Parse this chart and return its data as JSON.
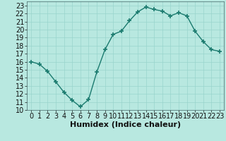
{
  "x": [
    0,
    1,
    2,
    3,
    4,
    5,
    6,
    7,
    8,
    9,
    10,
    11,
    12,
    13,
    14,
    15,
    16,
    17,
    18,
    19,
    20,
    21,
    22,
    23
  ],
  "y": [
    16.0,
    15.7,
    14.8,
    13.5,
    12.2,
    11.2,
    10.4,
    11.3,
    14.7,
    17.5,
    19.4,
    19.8,
    21.1,
    22.2,
    22.8,
    22.5,
    22.3,
    21.7,
    22.1,
    21.7,
    19.8,
    18.5,
    17.5,
    17.3
  ],
  "line_color": "#1a7a6e",
  "bg_color": "#b8e8e0",
  "grid_color": "#99d4cc",
  "xlabel": "Humidex (Indice chaleur)",
  "xlim": [
    -0.5,
    23.5
  ],
  "ylim": [
    10,
    23.5
  ],
  "yticks": [
    10,
    11,
    12,
    13,
    14,
    15,
    16,
    17,
    18,
    19,
    20,
    21,
    22,
    23
  ],
  "xticks": [
    0,
    1,
    2,
    3,
    4,
    5,
    6,
    7,
    8,
    9,
    10,
    11,
    12,
    13,
    14,
    15,
    16,
    17,
    18,
    19,
    20,
    21,
    22,
    23
  ],
  "marker": "+",
  "markersize": 4,
  "linewidth": 1.0,
  "tick_fontsize": 7,
  "xlabel_fontsize": 8
}
